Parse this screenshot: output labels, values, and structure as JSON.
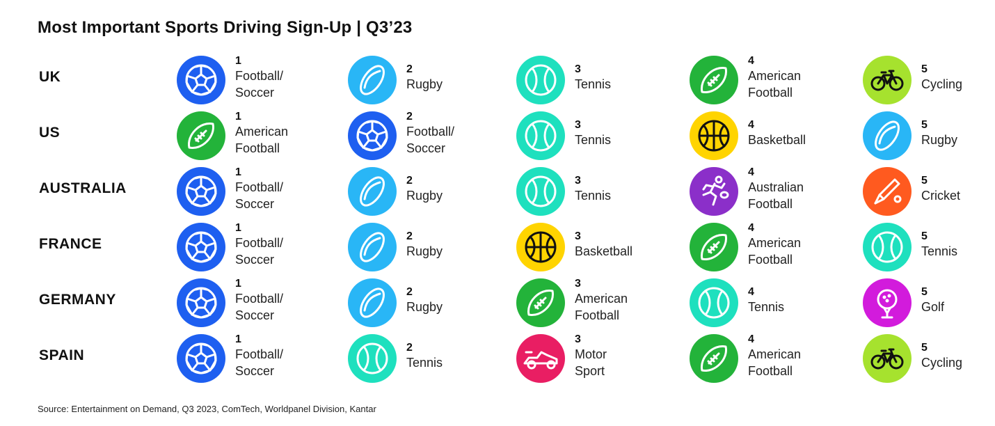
{
  "title": "Most Important Sports Driving Sign-Up | Q3’23",
  "source": "Source: Entertainment on Demand, Q3 2023, ComTech, Worldpanel Division, Kantar",
  "sports": {
    "football": {
      "label": "Football/\nSoccer",
      "color": "#1e5ff0",
      "icon": "soccer-ball-icon"
    },
    "american": {
      "label": "American\nFootball",
      "color": "#23b33a",
      "icon": "american-football-icon"
    },
    "rugby": {
      "label": "Rugby",
      "color": "#29b6f6",
      "icon": "rugby-ball-icon"
    },
    "tennis": {
      "label": "Tennis",
      "color": "#1ee0be",
      "icon": "tennis-ball-icon"
    },
    "basketball": {
      "label": "Basketball",
      "color": "#ffd400",
      "icon": "basketball-icon"
    },
    "cycling": {
      "label": "Cycling",
      "color": "#a6e22e",
      "icon": "bicycle-icon"
    },
    "aussie": {
      "label": "Australian\nFootball",
      "color": "#8b2fc9",
      "icon": "running-player-icon"
    },
    "cricket": {
      "label": "Cricket",
      "color": "#ff5a1f",
      "icon": "cricket-bat-icon"
    },
    "golf": {
      "label": "Golf",
      "color": "#d21bdc",
      "icon": "golf-ball-icon"
    },
    "motor": {
      "label": "Motor\nSport",
      "color": "#e91e63",
      "icon": "race-car-icon"
    }
  },
  "rows": [
    {
      "country": "UK",
      "ranks": [
        "1",
        "2",
        "3",
        "4",
        "5"
      ],
      "items": [
        "football",
        "rugby",
        "tennis",
        "american",
        "cycling"
      ]
    },
    {
      "country": "US",
      "ranks": [
        "1",
        "2",
        "3",
        "4",
        "5"
      ],
      "items": [
        "american",
        "football",
        "tennis",
        "basketball",
        "rugby"
      ]
    },
    {
      "country": "AUSTRALIA",
      "ranks": [
        "1",
        "2",
        "3",
        "4",
        "5"
      ],
      "items": [
        "football",
        "rugby",
        "tennis",
        "aussie",
        "cricket"
      ]
    },
    {
      "country": "FRANCE",
      "ranks": [
        "1",
        "2",
        "3",
        "4",
        "5"
      ],
      "items": [
        "football",
        "rugby",
        "basketball",
        "american",
        "tennis"
      ]
    },
    {
      "country": "GERMANY",
      "ranks": [
        "1",
        "2",
        "3",
        "4",
        "5"
      ],
      "items": [
        "football",
        "rugby",
        "american",
        "tennis",
        "golf"
      ]
    },
    {
      "country": "SPAIN",
      "ranks": [
        "1",
        "2",
        "3",
        "4",
        "5"
      ],
      "items": [
        "football",
        "tennis",
        "motor",
        "american",
        "cycling"
      ]
    }
  ]
}
